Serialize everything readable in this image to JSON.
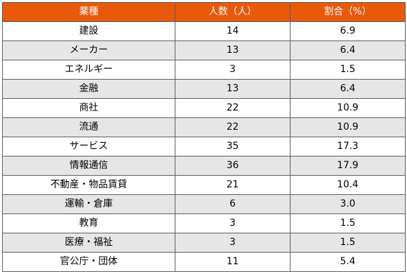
{
  "table": {
    "header": {
      "industry": "業種",
      "people": "人数（人）",
      "ratio": "割合（%）"
    },
    "header_color": "#e8590c",
    "stripe_color": "#e6e6e6",
    "rows": [
      {
        "industry": "建設",
        "people": "14",
        "ratio": "6.9"
      },
      {
        "industry": "メーカー",
        "people": "13",
        "ratio": "6.4"
      },
      {
        "industry": "エネルギー",
        "people": "3",
        "ratio": "1.5"
      },
      {
        "industry": "金融",
        "people": "13",
        "ratio": "6.4"
      },
      {
        "industry": "商社",
        "people": "22",
        "ratio": "10.9"
      },
      {
        "industry": "流通",
        "people": "22",
        "ratio": "10.9"
      },
      {
        "industry": "サービス",
        "people": "35",
        "ratio": "17.3"
      },
      {
        "industry": "情報通信",
        "people": "36",
        "ratio": "17.9"
      },
      {
        "industry": "不動産・物品賃貸",
        "people": "21",
        "ratio": "10.4"
      },
      {
        "industry": "運輸・倉庫",
        "people": "6",
        "ratio": "3.0"
      },
      {
        "industry": "教育",
        "people": "3",
        "ratio": "1.5"
      },
      {
        "industry": "医療・福祉",
        "people": "3",
        "ratio": "1.5"
      },
      {
        "industry": "官公庁・団体",
        "people": "11",
        "ratio": "5.4"
      }
    ]
  }
}
